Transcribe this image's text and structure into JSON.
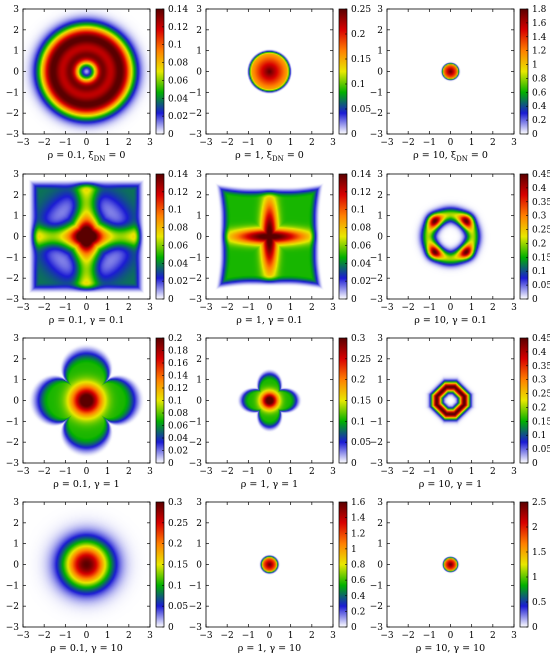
{
  "figure": {
    "colormap": [
      "#ffffff",
      "#1b1bd4",
      "#00b000",
      "#e8e800",
      "#ff7f00",
      "#d80000",
      "#5a0000"
    ]
  },
  "chart_data": [
    {
      "type": "heatmap",
      "caption": {
        "base": "ρ = 0.1, ξ",
        "sub": "DN",
        "tail": " = 0"
      },
      "x_ticks": [
        "−3",
        "−2",
        "−1",
        "0",
        "1",
        "2",
        "3"
      ],
      "y_ticks": [
        "−3",
        "−2",
        "−1",
        "0",
        "1",
        "2",
        "3"
      ],
      "xlim": [
        -3,
        3
      ],
      "ylim": [
        -3,
        3
      ],
      "colorbar": {
        "min": 0,
        "max": 0.14,
        "ticks": [
          "0",
          "0.02",
          "0.04",
          "0.06",
          "0.08",
          "0.1",
          "0.12",
          "0.14"
        ]
      },
      "pattern": {
        "shape": "ring",
        "r1": 1.6,
        "w1": 0.45,
        "r2": 0.7,
        "w2": 0.3,
        "a2": 0.8
      }
    },
    {
      "type": "heatmap",
      "caption": {
        "base": "ρ = 1, ξ",
        "sub": "DN",
        "tail": " = 0"
      },
      "x_ticks": [
        "−3",
        "−2",
        "−1",
        "0",
        "1",
        "2",
        "3"
      ],
      "y_ticks": [
        "−3",
        "−2",
        "−1",
        "0",
        "1",
        "2",
        "3"
      ],
      "xlim": [
        -3,
        3
      ],
      "ylim": [
        -3,
        3
      ],
      "colorbar": {
        "min": 0,
        "max": 0.25,
        "ticks": [
          "0",
          "0.05",
          "0.1",
          "0.15",
          "0.2",
          "0.25"
        ]
      },
      "pattern": {
        "shape": "disc",
        "r": 0.95,
        "edge": 0.12,
        "center": 1.0,
        "rim": 0.55
      }
    },
    {
      "type": "heatmap",
      "caption": {
        "base": "ρ = 10, ξ",
        "sub": "DN",
        "tail": " = 0"
      },
      "x_ticks": [
        "−3",
        "−2",
        "−1",
        "0",
        "1",
        "2",
        "3"
      ],
      "y_ticks": [
        "−3",
        "−2",
        "−1",
        "0",
        "1",
        "2",
        "3"
      ],
      "xlim": [
        -3,
        3
      ],
      "ylim": [
        -3,
        3
      ],
      "colorbar": {
        "min": 0,
        "max": 1.8,
        "ticks": [
          "0",
          "0.2",
          "0.4",
          "0.6",
          "0.8",
          "1",
          "1.2",
          "1.4",
          "1.6",
          "1.8"
        ]
      },
      "pattern": {
        "shape": "disc",
        "r": 0.38,
        "edge": 0.08,
        "center": 1.0,
        "rim": 0.6
      }
    },
    {
      "type": "heatmap",
      "caption": {
        "base": "ρ = 0.1, γ = 0.1"
      },
      "x_ticks": [
        "−3",
        "−2",
        "−1",
        "0",
        "1",
        "2",
        "3"
      ],
      "y_ticks": [
        "−3",
        "−2",
        "−1",
        "0",
        "1",
        "2",
        "3"
      ],
      "xlim": [
        -3,
        3
      ],
      "ylim": [
        -3,
        3
      ],
      "colorbar": {
        "min": 0,
        "max": 0.14,
        "ticks": [
          "0",
          "0.02",
          "0.04",
          "0.06",
          "0.08",
          "0.1",
          "0.12",
          "0.14"
        ]
      },
      "pattern": {
        "shape": "cross",
        "extent": 2.6,
        "arm": 0.35,
        "base": 0.3,
        "corner": 0.15
      }
    },
    {
      "type": "heatmap",
      "caption": {
        "base": "ρ = 1, γ = 0.1"
      },
      "x_ticks": [
        "−3",
        "−2",
        "−1",
        "0",
        "1",
        "2",
        "3"
      ],
      "y_ticks": [
        "−3",
        "−2",
        "−1",
        "0",
        "1",
        "2",
        "3"
      ],
      "xlim": [
        -3,
        3
      ],
      "ylim": [
        -3,
        3
      ],
      "colorbar": {
        "min": 0,
        "max": 0.14,
        "ticks": [
          "0",
          "0.02",
          "0.04",
          "0.06",
          "0.08",
          "0.1",
          "0.12",
          "0.14"
        ]
      },
      "pattern": {
        "shape": "clover",
        "extent": 2.0,
        "arm": 0.25,
        "base": 0.35,
        "corner": 0.0
      }
    },
    {
      "type": "heatmap",
      "caption": {
        "base": "ρ = 10, γ = 0.1"
      },
      "x_ticks": [
        "−3",
        "−2",
        "−1",
        "0",
        "1",
        "2",
        "3"
      ],
      "y_ticks": [
        "−3",
        "−2",
        "−1",
        "0",
        "1",
        "2",
        "3"
      ],
      "xlim": [
        -3,
        3
      ],
      "ylim": [
        -3,
        3
      ],
      "colorbar": {
        "min": 0,
        "max": 0.45,
        "ticks": [
          "0",
          "0.05",
          "0.1",
          "0.15",
          "0.2",
          "0.25",
          "0.3",
          "0.35",
          "0.4",
          "0.45"
        ]
      },
      "pattern": {
        "shape": "ringfour",
        "r": 1.05,
        "w": 0.22
      }
    },
    {
      "type": "heatmap",
      "caption": {
        "base": "ρ = 0.1, γ = 1"
      },
      "x_ticks": [
        "−3",
        "−2",
        "−1",
        "0",
        "1",
        "2",
        "3"
      ],
      "y_ticks": [
        "−3",
        "−2",
        "−1",
        "0",
        "1",
        "2",
        "3"
      ],
      "xlim": [
        -3,
        3
      ],
      "ylim": [
        -3,
        3
      ],
      "colorbar": {
        "min": 0,
        "max": 0.2,
        "ticks": [
          "0",
          "0.02",
          "0.04",
          "0.06",
          "0.08",
          "0.1",
          "0.12",
          "0.14",
          "0.16",
          "0.18",
          "0.2"
        ]
      },
      "pattern": {
        "shape": "star",
        "extent": 2.5,
        "sharp": 0.6
      }
    },
    {
      "type": "heatmap",
      "caption": {
        "base": "ρ = 1, γ = 1"
      },
      "x_ticks": [
        "−3",
        "−2",
        "−1",
        "0",
        "1",
        "2",
        "3"
      ],
      "y_ticks": [
        "−3",
        "−2",
        "−1",
        "0",
        "1",
        "2",
        "3"
      ],
      "xlim": [
        -3,
        3
      ],
      "ylim": [
        -3,
        3
      ],
      "colorbar": {
        "min": 0,
        "max": 0.3,
        "ticks": [
          "0",
          "0.05",
          "0.1",
          "0.15",
          "0.2",
          "0.25",
          "0.3"
        ]
      },
      "pattern": {
        "shape": "star",
        "extent": 1.4,
        "sharp": 1.0
      }
    },
    {
      "type": "heatmap",
      "caption": {
        "base": "ρ = 10, γ = 1"
      },
      "x_ticks": [
        "−3",
        "−2",
        "−1",
        "0",
        "1",
        "2",
        "3"
      ],
      "y_ticks": [
        "−3",
        "−2",
        "−1",
        "0",
        "1",
        "2",
        "3"
      ],
      "xlim": [
        -3,
        3
      ],
      "ylim": [
        -3,
        3
      ],
      "colorbar": {
        "min": 0,
        "max": 0.45,
        "ticks": [
          "0",
          "0.05",
          "0.1",
          "0.15",
          "0.2",
          "0.25",
          "0.3",
          "0.35",
          "0.4",
          "0.45"
        ]
      },
      "pattern": {
        "shape": "octring",
        "r": 0.65,
        "w": 0.3
      }
    },
    {
      "type": "heatmap",
      "caption": {
        "base": "ρ = 0.1, γ = 10"
      },
      "x_ticks": [
        "−3",
        "−2",
        "−1",
        "0",
        "1",
        "2",
        "3"
      ],
      "y_ticks": [
        "−3",
        "−2",
        "−1",
        "0",
        "1",
        "2",
        "3"
      ],
      "xlim": [
        -3,
        3
      ],
      "ylim": [
        -3,
        3
      ],
      "colorbar": {
        "min": 0,
        "max": 0.3,
        "ticks": [
          "0",
          "0.05",
          "0.1",
          "0.15",
          "0.2",
          "0.25",
          "0.3"
        ]
      },
      "pattern": {
        "shape": "gauss",
        "sigma": 0.75
      }
    },
    {
      "type": "heatmap",
      "caption": {
        "base": "ρ = 1, γ = 10"
      },
      "x_ticks": [
        "−3",
        "−2",
        "−1",
        "0",
        "1",
        "2",
        "3"
      ],
      "y_ticks": [
        "−3",
        "−2",
        "−1",
        "0",
        "1",
        "2",
        "3"
      ],
      "xlim": [
        -3,
        3
      ],
      "ylim": [
        -3,
        3
      ],
      "colorbar": {
        "min": 0,
        "max": 1.6,
        "ticks": [
          "0",
          "0.2",
          "0.4",
          "0.6",
          "0.8",
          "1",
          "1.2",
          "1.4",
          "1.6"
        ]
      },
      "pattern": {
        "shape": "disc",
        "r": 0.38,
        "edge": 0.1,
        "center": 1.0,
        "rim": 0.6
      }
    },
    {
      "type": "heatmap",
      "caption": {
        "base": "ρ = 10, γ = 10"
      },
      "x_ticks": [
        "−3",
        "−2",
        "−1",
        "0",
        "1",
        "2",
        "3"
      ],
      "y_ticks": [
        "−3",
        "−2",
        "−1",
        "0",
        "1",
        "2",
        "3"
      ],
      "xlim": [
        -3,
        3
      ],
      "ylim": [
        -3,
        3
      ],
      "colorbar": {
        "min": 0,
        "max": 2.5,
        "ticks": [
          "0",
          "0.5",
          "1",
          "1.5",
          "2",
          "2.5"
        ]
      },
      "pattern": {
        "shape": "disc",
        "r": 0.33,
        "edge": 0.08,
        "center": 1.0,
        "rim": 0.6
      }
    }
  ]
}
